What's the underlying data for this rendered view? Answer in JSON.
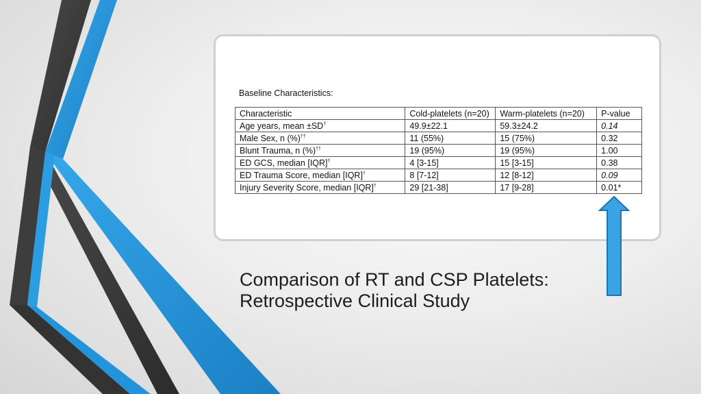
{
  "slide": {
    "title_line1": "Comparison of RT and CSP Platelets:",
    "title_line2": "Retrospective Clinical Study"
  },
  "table": {
    "heading": "Baseline Characteristics:",
    "headers": [
      "Characteristic",
      "Cold-platelets (n=20)",
      "Warm-platelets (n=20)",
      "P-value"
    ],
    "rows": [
      {
        "label": "Age years, mean ±SD",
        "marker": "†",
        "cold": "49.9±22.1",
        "warm": "59.3±24.2",
        "p": "0.14",
        "p_style": "italic"
      },
      {
        "label": "Male Sex, n (%)",
        "marker": "††",
        "cold": "11 (55%)",
        "warm": "15 (75%)",
        "p": "0.32",
        "p_style": "normal"
      },
      {
        "label": "Blunt Trauma, n (%)",
        "marker": "††",
        "cold": "19 (95%)",
        "warm": "19 (95%)",
        "p": "1.00",
        "p_style": "normal"
      },
      {
        "label": "ED GCS, median [IQR]",
        "marker": "†",
        "cold": "4 [3-15]",
        "warm": "15 [3-15]",
        "p": "0.38",
        "p_style": "normal"
      },
      {
        "label": "ED Trauma Score, median [IQR]",
        "marker": "†",
        "cold": "8 [7-12]",
        "warm": "12 [8-12]",
        "p": "0.09",
        "p_style": "italic"
      },
      {
        "label": "Injury Severity Score, median [IQR]",
        "marker": "†",
        "cold": "29 [21-38]",
        "warm": "17 [9-28]",
        "p": "0.01*",
        "p_style": "bold"
      }
    ]
  },
  "colors": {
    "accent_blue": "#2a9be0",
    "dark_stripe": "#3a3a3a",
    "arrow_fill": "#3aa3e3",
    "arrow_stroke": "#1e73b0"
  },
  "icons": {
    "arrow": "up-arrow-icon"
  }
}
